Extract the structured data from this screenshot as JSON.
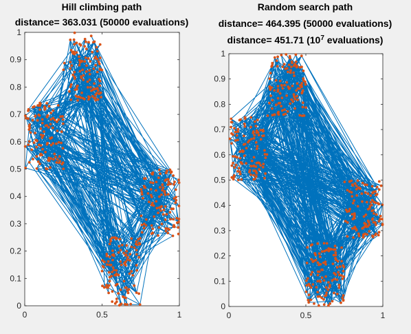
{
  "chart_data": [
    {
      "type": "line",
      "title_lines": [
        "Hill climbing path",
        "distance= 363.031 (50000 evaluations)"
      ],
      "x_ticks": [
        "0",
        "0.5",
        "1"
      ],
      "y_ticks": [
        "0",
        "0.1",
        "0.2",
        "0.3",
        "0.4",
        "0.5",
        "0.6",
        "0.7",
        "0.8",
        "0.9",
        "1"
      ],
      "xlim": [
        0,
        1
      ],
      "ylim": [
        0,
        1
      ],
      "grid": false,
      "colors": {
        "path": "#0072bd",
        "cities": "#d95319"
      },
      "clusters": [
        {
          "x": [
            0,
            0.25
          ],
          "y": [
            0.5,
            0.75
          ]
        },
        {
          "x": [
            0.25,
            0.5
          ],
          "y": [
            0.75,
            1.0
          ]
        },
        {
          "x": [
            0.75,
            1.0
          ],
          "y": [
            0.25,
            0.5
          ]
        },
        {
          "x": [
            0.5,
            0.75
          ],
          "y": [
            0.0,
            0.25
          ]
        }
      ],
      "series": [
        {
          "type": "line",
          "values_note": "tour"
        },
        {
          "type": "scatter",
          "values_note": "cities"
        }
      ]
    },
    {
      "type": "line",
      "title_lines": [
        "Random search path",
        "distance= 464.395 (50000 evaluations)",
        "distance= 451.71 (10",
        "7",
        " evaluations)"
      ],
      "x_ticks": [
        "0",
        "0.5",
        "1"
      ],
      "y_ticks": [
        "0",
        "0.1",
        "0.2",
        "0.3",
        "0.4",
        "0.5",
        "0.6",
        "0.7",
        "0.8",
        "0.9",
        "1"
      ],
      "xlim": [
        0,
        1
      ],
      "ylim": [
        0,
        1
      ],
      "grid": false,
      "colors": {
        "path": "#0072bd",
        "cities": "#d95319"
      },
      "clusters": [
        {
          "x": [
            0,
            0.25
          ],
          "y": [
            0.5,
            0.75
          ]
        },
        {
          "x": [
            0.25,
            0.5
          ],
          "y": [
            0.75,
            1.0
          ]
        },
        {
          "x": [
            0.75,
            1.0
          ],
          "y": [
            0.25,
            0.5
          ]
        },
        {
          "x": [
            0.5,
            0.75
          ],
          "y": [
            0.0,
            0.25
          ]
        }
      ],
      "series": [
        {
          "type": "line",
          "values_note": "tour"
        },
        {
          "type": "scatter",
          "values_note": "cities"
        }
      ]
    }
  ]
}
